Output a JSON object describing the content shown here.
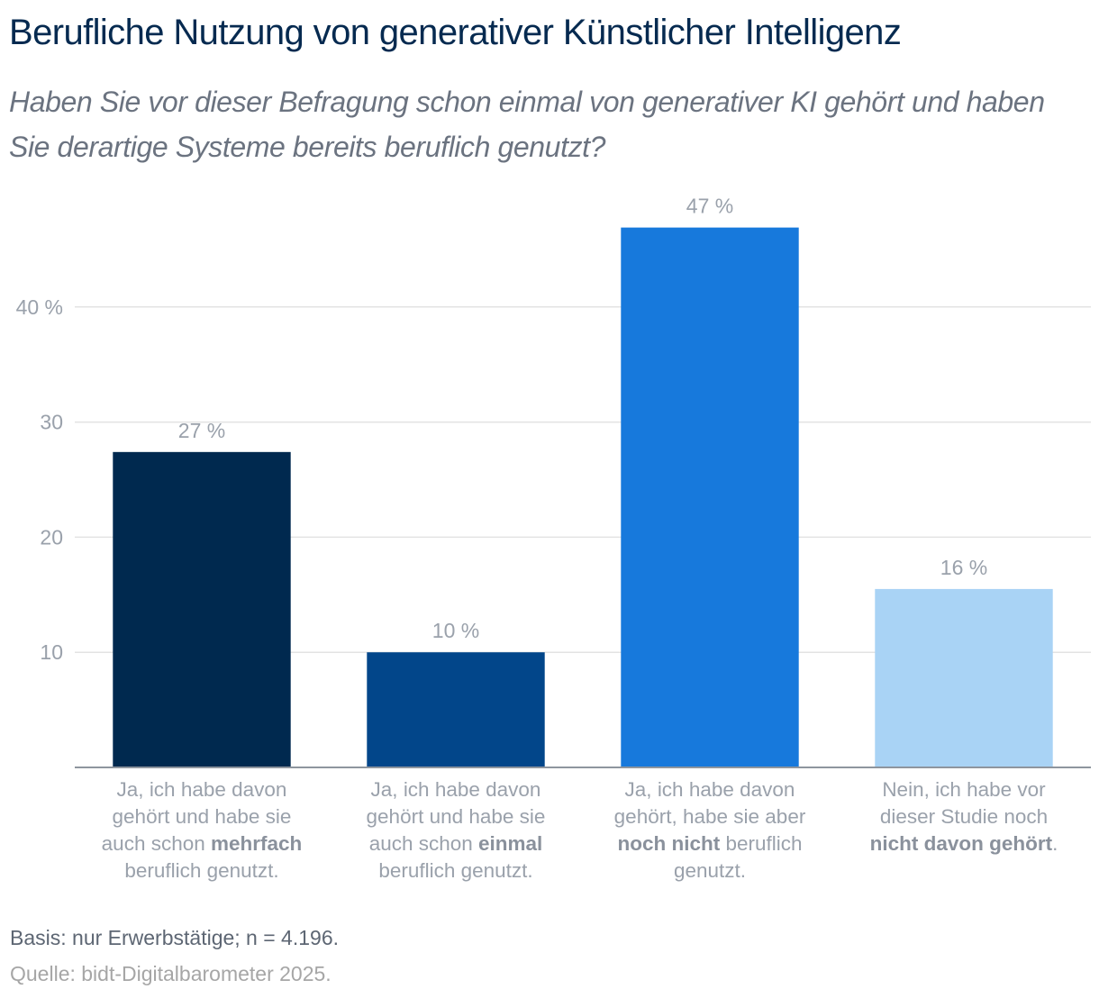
{
  "title": "Berufliche Nutzung von generativer Künstlicher Intelligenz",
  "subtitle": "Haben Sie vor dieser Befragung schon einmal von generativer KI gehört und haben Sie derartige Systeme bereits beruflich genutzt?",
  "footer": {
    "basis": "Basis: nur Erwerbstätige; n = 4.196.",
    "source": "Quelle: bidt-Digitalbarometer 2025."
  },
  "chart_data": {
    "type": "bar",
    "title": "Berufliche Nutzung von generativer Künstlicher Intelligenz",
    "xlabel": "",
    "ylabel": "",
    "ylim": [
      0,
      47.5
    ],
    "grid": true,
    "legend": "none",
    "yticks": [
      {
        "value": 10,
        "label": "10"
      },
      {
        "value": 20,
        "label": "20"
      },
      {
        "value": 30,
        "label": "30"
      },
      {
        "value": 40,
        "label": "40 %"
      }
    ],
    "categories": [
      [
        {
          "t": "Ja, ich habe davon",
          "b": false
        },
        {
          "t": "\n",
          "b": false
        },
        {
          "t": "gehört und habe sie",
          "b": false
        },
        {
          "t": "\n",
          "b": false
        },
        {
          "t": "auch schon ",
          "b": false
        },
        {
          "t": "mehrfach",
          "b": true
        },
        {
          "t": "\n",
          "b": false
        },
        {
          "t": "beruflich genutzt.",
          "b": false
        }
      ],
      [
        {
          "t": "Ja, ich habe davon",
          "b": false
        },
        {
          "t": "\n",
          "b": false
        },
        {
          "t": "gehört und habe sie",
          "b": false
        },
        {
          "t": "\n",
          "b": false
        },
        {
          "t": "auch schon ",
          "b": false
        },
        {
          "t": "einmal",
          "b": true
        },
        {
          "t": "\n",
          "b": false
        },
        {
          "t": "beruflich genutzt.",
          "b": false
        }
      ],
      [
        {
          "t": "Ja, ich habe davon",
          "b": false
        },
        {
          "t": "\n",
          "b": false
        },
        {
          "t": "gehört, habe sie aber",
          "b": false
        },
        {
          "t": "\n",
          "b": false
        },
        {
          "t": "noch nicht",
          "b": true
        },
        {
          "t": " beruflich",
          "b": false
        },
        {
          "t": "\n",
          "b": false
        },
        {
          "t": "genutzt.",
          "b": false
        }
      ],
      [
        {
          "t": "Nein, ich habe vor",
          "b": false
        },
        {
          "t": "\n",
          "b": false
        },
        {
          "t": "dieser Studie noch",
          "b": false
        },
        {
          "t": "\n",
          "b": false
        },
        {
          "t": "nicht davon gehört",
          "b": true
        },
        {
          "t": ".",
          "b": false
        }
      ]
    ],
    "values": [
      27.4,
      10.0,
      46.9,
      15.5
    ],
    "value_labels": [
      "27 %",
      "10 %",
      "47 %",
      "16 %"
    ],
    "colors": [
      "#00294f",
      "#02468a",
      "#1779dc",
      "#a9d3f5"
    ]
  }
}
